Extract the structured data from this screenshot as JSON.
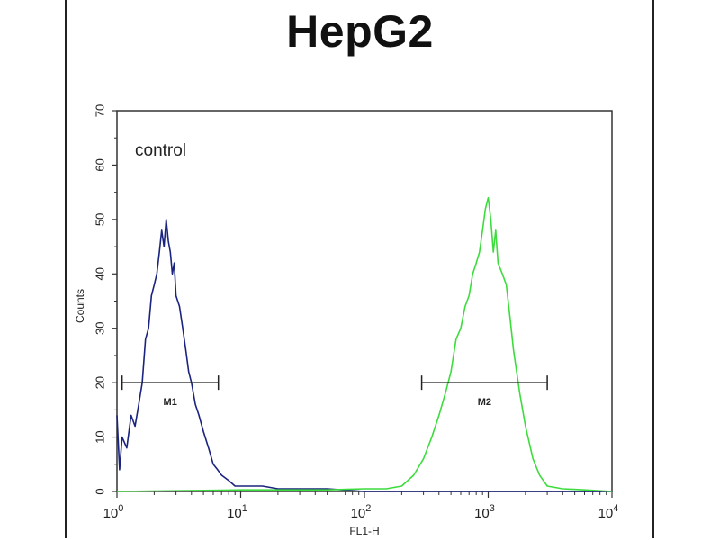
{
  "chart_data": {
    "type": "line",
    "title": "HepG2",
    "xlabel": "FL1-H",
    "ylabel": "Counts",
    "x_scale": "log",
    "xlim": [
      1,
      10000
    ],
    "ylim": [
      0,
      70
    ],
    "x_ticks": [
      {
        "value": 1,
        "base": "10",
        "exp": "0"
      },
      {
        "value": 10,
        "base": "10",
        "exp": "1"
      },
      {
        "value": 100,
        "base": "10",
        "exp": "2"
      },
      {
        "value": 1000,
        "base": "10",
        "exp": "3"
      },
      {
        "value": 10000,
        "base": "10",
        "exp": "4"
      }
    ],
    "y_ticks": [
      0,
      10,
      20,
      30,
      40,
      50,
      60,
      70
    ],
    "grid": false,
    "annotation": "control",
    "markers": [
      {
        "label": "M1",
        "x_start": 1.1,
        "x_end": 6.6,
        "y": 20
      },
      {
        "label": "M2",
        "x_start": 290,
        "x_end": 3000,
        "y": 20
      }
    ],
    "series": [
      {
        "color": "#1a237e",
        "x": [
          1.0,
          1.05,
          1.1,
          1.2,
          1.3,
          1.4,
          1.5,
          1.6,
          1.7,
          1.8,
          1.9,
          2.0,
          2.1,
          2.2,
          2.3,
          2.4,
          2.5,
          2.6,
          2.7,
          2.8,
          2.9,
          3.0,
          3.2,
          3.4,
          3.6,
          3.8,
          4.0,
          4.3,
          4.6,
          5.0,
          5.5,
          6.0,
          6.5,
          7.0,
          8.0,
          9.0,
          10.0,
          12.0,
          15.0,
          20.0,
          30.0,
          50.0,
          100.0,
          1000.0,
          10000.0
        ],
        "y": [
          14,
          4,
          10,
          8,
          14,
          12,
          16,
          20,
          28,
          30,
          36,
          38,
          40,
          44,
          48,
          45,
          50,
          46,
          44,
          40,
          42,
          36,
          34,
          30,
          26,
          22,
          20,
          16,
          14,
          11,
          8,
          5,
          4,
          3,
          2,
          1,
          1,
          1,
          1,
          0.5,
          0.5,
          0.5,
          0,
          0,
          0
        ]
      },
      {
        "color": "#3ddc3d",
        "x": [
          1.0,
          10.0,
          50.0,
          100.0,
          150.0,
          200.0,
          250.0,
          300.0,
          350.0,
          400.0,
          450.0,
          500.0,
          550.0,
          600.0,
          650.0,
          700.0,
          750.0,
          800.0,
          850.0,
          900.0,
          950.0,
          1000.0,
          1050.0,
          1100.0,
          1150.0,
          1200.0,
          1300.0,
          1400.0,
          1500.0,
          1600.0,
          1800.0,
          2000.0,
          2300.0,
          2600.0,
          3000.0,
          4000.0,
          6000.0,
          10000.0
        ],
        "y": [
          0,
          0.3,
          0.3,
          0.5,
          0.5,
          1,
          3,
          6,
          10,
          14,
          18,
          22,
          28,
          30,
          34,
          36,
          40,
          42,
          44,
          48,
          52,
          54,
          50,
          44,
          48,
          42,
          40,
          38,
          32,
          26,
          18,
          12,
          6,
          3,
          1,
          0.5,
          0.3,
          0
        ]
      }
    ]
  }
}
